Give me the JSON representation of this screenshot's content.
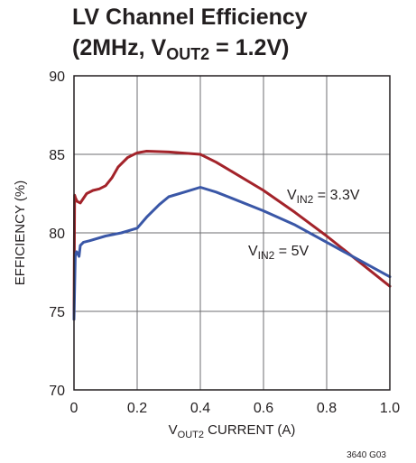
{
  "chart_data": {
    "type": "line",
    "title": {
      "line1": "LV Channel Efficiency",
      "line2_prefix": "(2MHz, V",
      "line2_sub": "OUT2",
      "line2_suffix": " = 1.2V)"
    },
    "xlabel": {
      "main": "V",
      "sub": "OUT2",
      "rest": " CURRENT (A)"
    },
    "ylabel": "EFFICIENCY (%)",
    "xlim": [
      0,
      1.0
    ],
    "ylim": [
      70,
      90
    ],
    "x_ticks": [
      "0",
      "0.2",
      "0.4",
      "0.6",
      "0.8",
      "1.0"
    ],
    "y_ticks": [
      "90",
      "85",
      "80",
      "75",
      "70"
    ],
    "x_tick_values": [
      0,
      0.2,
      0.4,
      0.6,
      0.8,
      1.0
    ],
    "y_tick_values": [
      90,
      85,
      80,
      75,
      70
    ],
    "grid": true,
    "series": [
      {
        "label": {
          "main": "V",
          "sub": "IN2",
          "rest": " = 3.3V"
        },
        "color": "#a3232a",
        "x": [
          0,
          0.002,
          0.005,
          0.01,
          0.02,
          0.04,
          0.06,
          0.08,
          0.1,
          0.12,
          0.14,
          0.17,
          0.2,
          0.23,
          0.3,
          0.4,
          0.45,
          0.5,
          0.6,
          0.7,
          0.8,
          0.9,
          1.0
        ],
        "y": [
          74.5,
          82.4,
          82.2,
          82.0,
          81.9,
          82.5,
          82.7,
          82.8,
          83.0,
          83.5,
          84.2,
          84.8,
          85.1,
          85.2,
          85.15,
          85.0,
          84.5,
          83.9,
          82.7,
          81.3,
          79.8,
          78.2,
          76.6
        ]
      },
      {
        "label": {
          "main": "V",
          "sub": "IN2",
          "rest": " = 5V"
        },
        "color": "#3a57a7",
        "x": [
          0,
          0.002,
          0.004,
          0.008,
          0.012,
          0.016,
          0.02,
          0.03,
          0.05,
          0.1,
          0.15,
          0.2,
          0.23,
          0.27,
          0.3,
          0.35,
          0.4,
          0.45,
          0.5,
          0.6,
          0.7,
          0.8,
          0.9,
          1.0
        ],
        "y": [
          74.5,
          76.5,
          78.5,
          78.8,
          78.7,
          78.5,
          79.2,
          79.4,
          79.5,
          79.8,
          80.0,
          80.3,
          81.0,
          81.8,
          82.3,
          82.6,
          82.9,
          82.6,
          82.2,
          81.4,
          80.5,
          79.4,
          78.3,
          77.2
        ]
      }
    ]
  },
  "figure_code": "3640 G03"
}
